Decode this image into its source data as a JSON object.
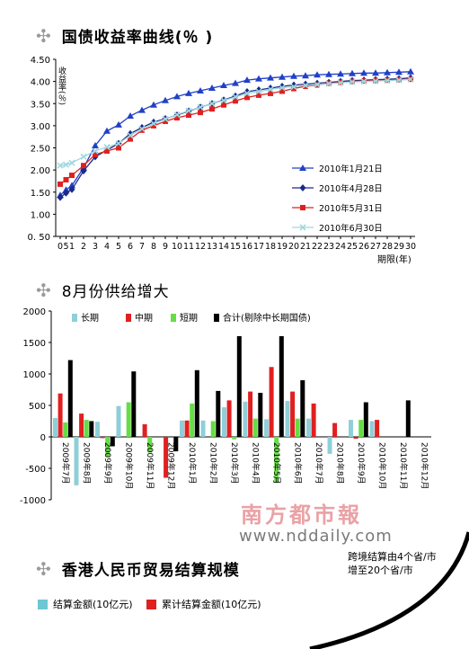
{
  "header": {
    "section1": "国债收益率曲线(％ )",
    "section2": "8月份供给增大",
    "section3": "香港人民币贸易结算规模"
  },
  "chart_data": [
    {
      "type": "line",
      "title": "国债收益率曲线(％ )",
      "xlabel": "期限(年)",
      "ylabel": "收益率(％)",
      "x": [
        0,
        0.5,
        1,
        2,
        3,
        4,
        5,
        6,
        7,
        8,
        9,
        10,
        11,
        12,
        13,
        14,
        15,
        16,
        17,
        18,
        19,
        20,
        21,
        22,
        23,
        24,
        25,
        26,
        27,
        28,
        29,
        30
      ],
      "x_tick_labels": [
        "0",
        "5",
        "1",
        "2",
        "3",
        "4",
        "5",
        "6",
        "7",
        "8",
        "9",
        "10",
        "11",
        "12",
        "13",
        "14",
        "15",
        "16",
        "17",
        "18",
        "19",
        "20",
        "21",
        "22",
        "23",
        "24",
        "25",
        "26",
        "27",
        "28",
        "29",
        "30"
      ],
      "ylim": [
        0.5,
        4.5
      ],
      "y_ticks": [
        0.5,
        1.0,
        1.5,
        2.0,
        2.5,
        3.0,
        3.5,
        4.0,
        4.5
      ],
      "y_tick_labels": [
        "0. 50",
        "1.00",
        "1.50",
        "2.00",
        "2.50",
        "3.00",
        "3.50",
        "4.00",
        "4.50"
      ],
      "legend_position": "right",
      "series": [
        {
          "name": "2010年1月21日",
          "color": "#2040c8",
          "marker": "triangle",
          "values": [
            1.43,
            1.55,
            1.65,
            2.05,
            2.55,
            2.88,
            3.02,
            3.22,
            3.35,
            3.47,
            3.57,
            3.66,
            3.73,
            3.79,
            3.85,
            3.91,
            3.96,
            4.03,
            4.06,
            4.08,
            4.1,
            4.12,
            4.13,
            4.15,
            4.16,
            4.17,
            4.18,
            4.19,
            4.19,
            4.2,
            4.21,
            4.22
          ]
        },
        {
          "name": "2010年4月28日",
          "color": "#1a2a8a",
          "marker": "diamond",
          "values": [
            1.38,
            1.48,
            1.56,
            1.98,
            2.3,
            2.45,
            2.6,
            2.82,
            2.96,
            3.08,
            3.16,
            3.24,
            3.33,
            3.42,
            3.5,
            3.58,
            3.67,
            3.77,
            3.81,
            3.85,
            3.89,
            3.92,
            3.94,
            3.96,
            3.98,
            4.0,
            4.02,
            4.03,
            4.04,
            4.05,
            4.06,
            4.08
          ]
        },
        {
          "name": "2010年5月31日",
          "color": "#e02020",
          "marker": "square",
          "values": [
            1.68,
            1.78,
            1.88,
            2.1,
            2.35,
            2.43,
            2.5,
            2.7,
            2.9,
            3.0,
            3.1,
            3.18,
            3.24,
            3.3,
            3.38,
            3.47,
            3.56,
            3.64,
            3.69,
            3.73,
            3.78,
            3.84,
            3.89,
            3.92,
            3.96,
            3.98,
            4.0,
            4.01,
            4.02,
            4.03,
            4.04,
            4.05
          ]
        },
        {
          "name": "2010年6月30日",
          "color": "#9fd8df",
          "marker": "cross",
          "values": [
            2.1,
            2.12,
            2.16,
            2.3,
            2.43,
            2.52,
            2.6,
            2.78,
            2.93,
            3.05,
            3.15,
            3.25,
            3.34,
            3.42,
            3.5,
            3.57,
            3.65,
            3.73,
            3.77,
            3.82,
            3.86,
            3.88,
            3.91,
            3.93,
            3.95,
            3.97,
            3.99,
            4.0,
            4.01,
            4.02,
            4.03,
            4.05
          ]
        }
      ]
    },
    {
      "type": "bar",
      "title": "8月份供给增大",
      "categories": [
        "2009年7月",
        "2009年8月",
        "2009年9月",
        "2009年10月",
        "2009年11月",
        "2009年12月",
        "2010年1月",
        "2010年2月",
        "2010年3月",
        "2010年4月",
        "2010年5月",
        "2010年6月",
        "2010年7月",
        "2010年8月",
        "2010年9月",
        "2010年10月",
        "2010年11月",
        "2010年12月"
      ],
      "ylim": [
        -1000,
        2000
      ],
      "y_ticks": [
        -1000,
        -500,
        0,
        500,
        1000,
        1500,
        2000
      ],
      "y_tick_labels": [
        "-1000",
        "-500",
        "0",
        "500",
        "1000",
        "1500",
        "2000"
      ],
      "legend_position": "top",
      "series": [
        {
          "name": "长期",
          "color": "#8fcfd8",
          "values": [
            300,
            -770,
            240,
            490,
            0,
            0,
            260,
            260,
            470,
            560,
            280,
            570,
            290,
            -270,
            270,
            250,
            0,
            0
          ]
        },
        {
          "name": "中期",
          "color": "#e02020",
          "values": [
            690,
            370,
            -20,
            0,
            200,
            -650,
            260,
            0,
            580,
            720,
            1110,
            720,
            530,
            220,
            -30,
            270,
            0,
            0
          ]
        },
        {
          "name": "短期",
          "color": "#66dd44",
          "values": [
            230,
            270,
            -320,
            550,
            -250,
            0,
            530,
            250,
            -40,
            290,
            -730,
            290,
            0,
            0,
            270,
            0,
            0,
            0
          ]
        },
        {
          "name": "合计(剔除中长期国债)",
          "color": "#000000",
          "values": [
            1220,
            250,
            -150,
            1040,
            0,
            -230,
            1060,
            730,
            1600,
            700,
            1600,
            900,
            0,
            0,
            550,
            0,
            580,
            0
          ]
        }
      ]
    }
  ],
  "watermark": {
    "line1": "南方都市報",
    "line2": "www.nddaily.com"
  },
  "note": {
    "line1": "跨境结算由4个省/市",
    "line2": "增至20个省/市"
  },
  "legend3": [
    {
      "name": "结算金额(10亿元)",
      "color": "#6cc8d4"
    },
    {
      "name": "累计结算金额(10亿元)",
      "color": "#e02020"
    }
  ]
}
